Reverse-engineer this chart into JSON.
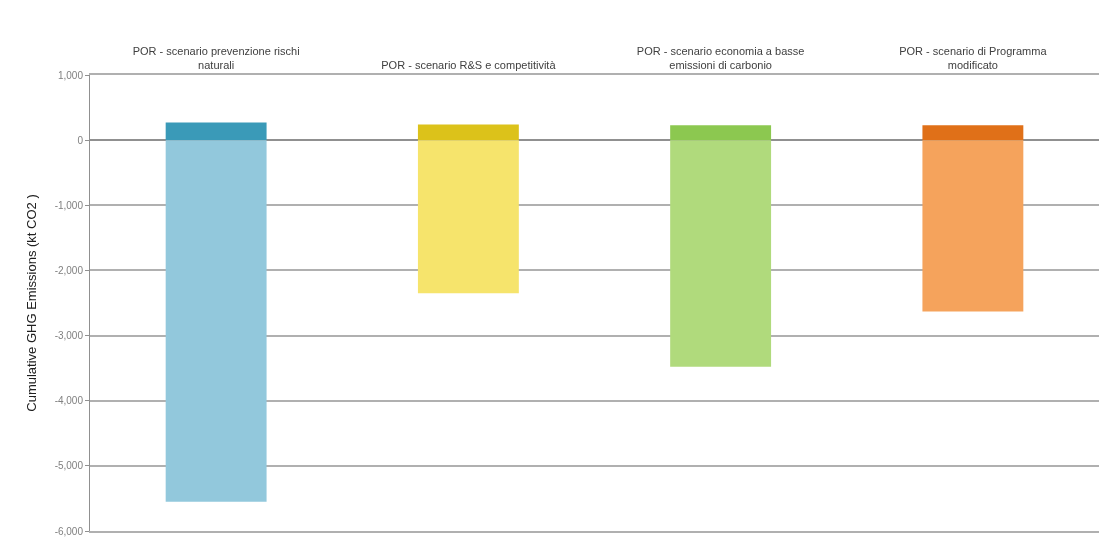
{
  "chart_data": {
    "type": "bar",
    "stacked": true,
    "ylabel": "Cumulative GHG Emissions (kt CO2 )",
    "categories": [
      "POR - scenario prevenzione rischi naturali",
      "POR - scenario R&S e competitività",
      "POR - scenario economia a basse emissioni di carbonio",
      "POR - scenario di Programma modificato"
    ],
    "series": [
      {
        "colors": [
          "#3a9ab8",
          "#dcc21a",
          "#8cc850",
          "#e07018"
        ],
        "values": [
          270,
          240,
          230,
          230
        ]
      },
      {
        "colors": [
          "#92c8dc",
          "#f6e46c",
          "#b0da7c",
          "#f5a35c"
        ],
        "values": [
          -5550,
          -2350,
          -3480,
          -2630
        ]
      }
    ],
    "ylim": [
      -6000,
      1000
    ],
    "yticks": [
      {
        "value": 1000,
        "label": "1,000"
      },
      0,
      {
        "value": -1000,
        "label": "-1,000"
      },
      {
        "value": -2000,
        "label": "-2,000"
      },
      {
        "value": -3000,
        "label": "-3,000"
      },
      {
        "value": -4000,
        "label": "-4,000"
      },
      {
        "value": -5000,
        "label": "-5,000"
      },
      {
        "value": -6000,
        "label": "-6,000"
      }
    ],
    "grid": "y"
  }
}
